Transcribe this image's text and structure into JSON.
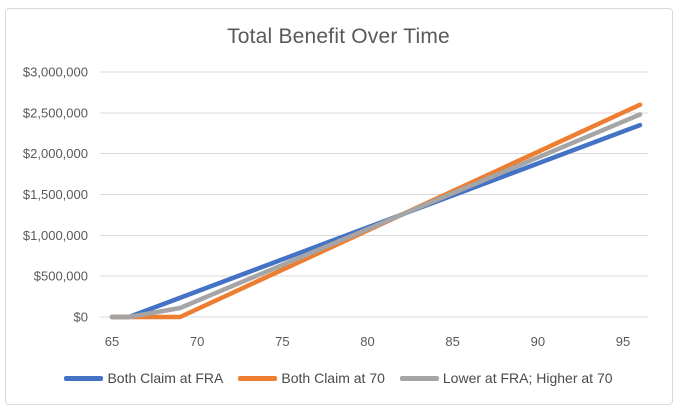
{
  "chart": {
    "title": "Total Benefit Over Time"
  },
  "colors": {
    "text": "#595959",
    "legend_text": "#4a4a4a",
    "grid": "#D9D9D9",
    "border": "#D9D9D9",
    "background": "#FFFFFF",
    "series_blue": "#4472C4",
    "series_orange": "#ED7D31",
    "series_gray": "#A5A5A5"
  },
  "chart_data": {
    "type": "line",
    "title": "Total Benefit Over Time",
    "xlabel": "",
    "ylabel": "",
    "xlim": [
      65,
      96
    ],
    "ylim": [
      0,
      3000000
    ],
    "grid": "horizontal",
    "legend_position": "bottom",
    "x_ticks": [
      65,
      70,
      75,
      80,
      85,
      90,
      95
    ],
    "y_ticks": [
      {
        "value": 0,
        "label": "$0"
      },
      {
        "value": 500000,
        "label": "$500,000"
      },
      {
        "value": 1000000,
        "label": "$1,000,000"
      },
      {
        "value": 1500000,
        "label": "$1,500,000"
      },
      {
        "value": 2000000,
        "label": "$2,000,000"
      },
      {
        "value": 2500000,
        "label": "$2,500,000"
      },
      {
        "value": 3000000,
        "label": "$3,000,000"
      }
    ],
    "series": [
      {
        "id": "both-claim-at-fra",
        "name": "Both Claim at FRA",
        "color": "#4472C4",
        "points": [
          [
            65,
            0
          ],
          [
            66,
            0
          ],
          [
            96,
            2350000
          ]
        ]
      },
      {
        "id": "both-claim-at-70",
        "name": "Both Claim at 70",
        "color": "#ED7D31",
        "points": [
          [
            65,
            0
          ],
          [
            69,
            0
          ],
          [
            96,
            2600000
          ]
        ]
      },
      {
        "id": "lower-at-fra-higher-at-70",
        "name": "Lower at FRA; Higher at 70",
        "color": "#A5A5A5",
        "points": [
          [
            65,
            0
          ],
          [
            66,
            0
          ],
          [
            69,
            110000
          ],
          [
            96,
            2480000
          ]
        ]
      }
    ]
  }
}
